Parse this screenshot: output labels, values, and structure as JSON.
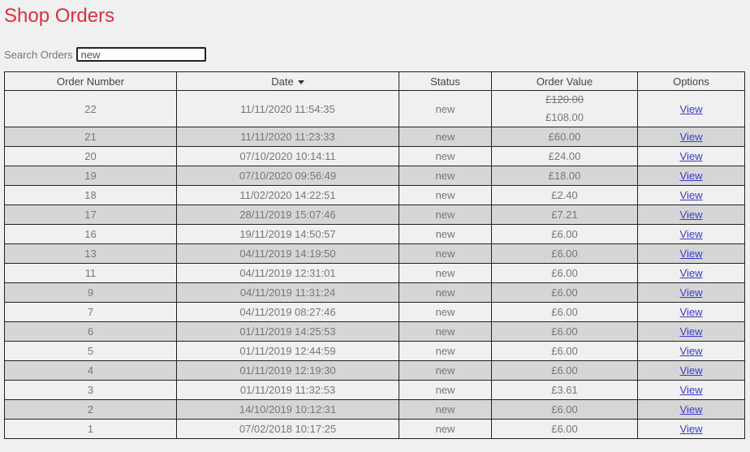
{
  "title": "Shop Orders",
  "search": {
    "label": "Search Orders",
    "value": "new"
  },
  "columns": [
    "Order Number",
    "Date",
    "Status",
    "Order Value",
    "Options"
  ],
  "sort": {
    "column": "Date",
    "direction": "desc"
  },
  "first_row": {
    "number": "22",
    "date": "11/11/2020 11:54:35",
    "status": "new",
    "original_value": "£120.00",
    "value": "£108.00",
    "option": "View"
  },
  "rows": [
    {
      "number": "21",
      "date": "11/11/2020 11:23:33",
      "status": "new",
      "value": "£60.00",
      "option": "View"
    },
    {
      "number": "20",
      "date": "07/10/2020 10:14:11",
      "status": "new",
      "value": "£24.00",
      "option": "View"
    },
    {
      "number": "19",
      "date": "07/10/2020 09:56:49",
      "status": "new",
      "value": "£18.00",
      "option": "View"
    },
    {
      "number": "18",
      "date": "11/02/2020 14:22:51",
      "status": "new",
      "value": "£2.40",
      "option": "View"
    },
    {
      "number": "17",
      "date": "28/11/2019 15:07:46",
      "status": "new",
      "value": "£7.21",
      "option": "View"
    },
    {
      "number": "16",
      "date": "19/11/2019 14:50:57",
      "status": "new",
      "value": "£6.00",
      "option": "View"
    },
    {
      "number": "13",
      "date": "04/11/2019 14:19:50",
      "status": "new",
      "value": "£6.00",
      "option": "View"
    },
    {
      "number": "11",
      "date": "04/11/2019 12:31:01",
      "status": "new",
      "value": "£6.00",
      "option": "View"
    },
    {
      "number": "9",
      "date": "04/11/2019 11:31:24",
      "status": "new",
      "value": "£6.00",
      "option": "View"
    },
    {
      "number": "7",
      "date": "04/11/2019 08:27:46",
      "status": "new",
      "value": "£6.00",
      "option": "View"
    },
    {
      "number": "6",
      "date": "01/11/2019 14:25:53",
      "status": "new",
      "value": "£6.00",
      "option": "View"
    },
    {
      "number": "5",
      "date": "01/11/2019 12:44:59",
      "status": "new",
      "value": "£6.00",
      "option": "View"
    },
    {
      "number": "4",
      "date": "01/11/2019 12:19:30",
      "status": "new",
      "value": "£6.00",
      "option": "View"
    },
    {
      "number": "3",
      "date": "01/11/2019 11:32:53",
      "status": "new",
      "value": "£3.61",
      "option": "View"
    },
    {
      "number": "2",
      "date": "14/10/2019 10:12:31",
      "status": "new",
      "value": "£6.00",
      "option": "View"
    },
    {
      "number": "1",
      "date": "07/02/2018 10:17:25",
      "status": "new",
      "value": "£6.00",
      "option": "View"
    }
  ]
}
